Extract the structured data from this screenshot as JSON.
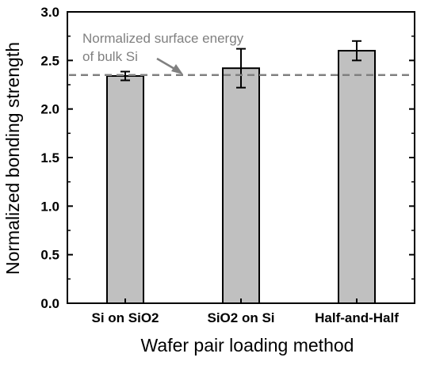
{
  "chart_data": {
    "type": "bar",
    "categories": [
      "Si on SiO2",
      "SiO2 on Si",
      "Half-and-Half"
    ],
    "values": [
      2.34,
      2.42,
      2.6
    ],
    "errors": [
      0.045,
      0.2,
      0.1
    ],
    "ylim": [
      0,
      3.0
    ],
    "yticks": [
      "0.0",
      "0.5",
      "1.0",
      "1.5",
      "2.0",
      "2.5",
      "3.0"
    ],
    "xlabel": "Wafer pair loading method",
    "ylabel": "Normalized bonding strength",
    "reference_line": {
      "value": 2.35,
      "label_line1": "Normalized surface energy",
      "label_line2": "of bulk Si"
    },
    "colors": {
      "bar_fill": "#c0c0c0",
      "bar_stroke": "#000000",
      "reference": "#808080",
      "annotation": "#808080"
    },
    "grid": false
  }
}
